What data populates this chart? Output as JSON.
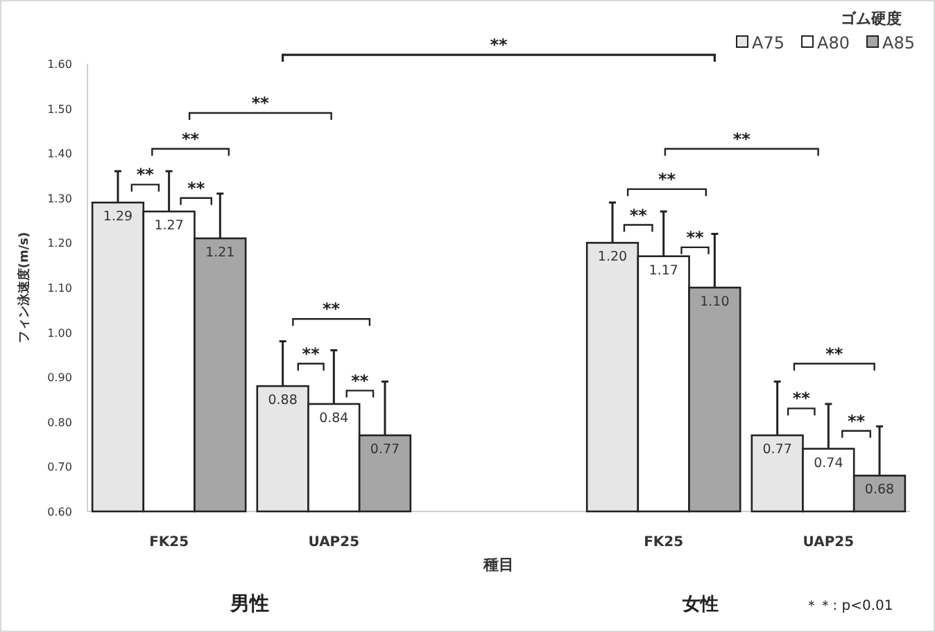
{
  "chart_data": {
    "type": "bar",
    "ylabel": "フィン泳速度(m/s)",
    "xlabel": "種目",
    "legend_title": "ゴム硬度",
    "legend": "top right",
    "categories": [
      "FK25",
      "UAP25",
      null,
      "FK25",
      "UAP25"
    ],
    "ylim": [
      0.6,
      1.6
    ],
    "yticks": [
      {
        "value": 0.6,
        "label": "0.60"
      },
      {
        "value": 0.7,
        "label": "0.70"
      },
      {
        "value": 0.8,
        "label": "0.80"
      },
      {
        "value": 0.9,
        "label": "0.90"
      },
      {
        "value": 1.0,
        "label": "1.00"
      },
      {
        "value": 1.1,
        "label": "1.10"
      },
      {
        "value": 1.2,
        "label": "1.20"
      },
      {
        "value": 1.3,
        "label": "1.30"
      },
      {
        "value": 1.4,
        "label": "1.40"
      },
      {
        "value": 1.5,
        "label": "1.50"
      },
      {
        "value": 1.6,
        "label": "1.60"
      }
    ],
    "series": [
      {
        "name": "A75",
        "color": "#e6e6e6",
        "values": [
          1.29,
          0.88,
          null,
          1.2,
          0.77
        ],
        "value_labels": [
          "1.29",
          "0.88",
          null,
          "1.20",
          "0.77"
        ],
        "errors": [
          [
            1.29,
            1.36
          ],
          [
            0.88,
            0.98
          ],
          null,
          [
            1.2,
            1.29
          ],
          [
            0.77,
            0.89
          ]
        ]
      },
      {
        "name": "A80",
        "color": "#ffffff",
        "values": [
          1.27,
          0.84,
          null,
          1.17,
          0.74
        ],
        "value_labels": [
          "1.27",
          "0.84",
          null,
          "1.17",
          "0.74"
        ],
        "errors": [
          [
            1.27,
            1.36
          ],
          [
            0.84,
            0.96
          ],
          null,
          [
            1.17,
            1.27
          ],
          [
            0.74,
            0.84
          ]
        ]
      },
      {
        "name": "A85",
        "color": "#a6a6a6",
        "values": [
          1.21,
          0.77,
          null,
          1.1,
          0.68
        ],
        "value_labels": [
          "1.21",
          "0.77",
          null,
          "1.10",
          "0.68"
        ],
        "errors": [
          [
            1.21,
            1.31
          ],
          [
            0.77,
            0.89
          ],
          null,
          [
            1.1,
            1.22
          ],
          [
            0.68,
            0.79
          ]
        ]
      }
    ],
    "annotations": [
      "**",
      "**",
      "**",
      "**",
      "**",
      "**",
      "**",
      "**",
      "**",
      "**",
      "**",
      "**",
      "**",
      "**",
      "**",
      "男性",
      "女性",
      "＊＊: p<0.01"
    ]
  }
}
